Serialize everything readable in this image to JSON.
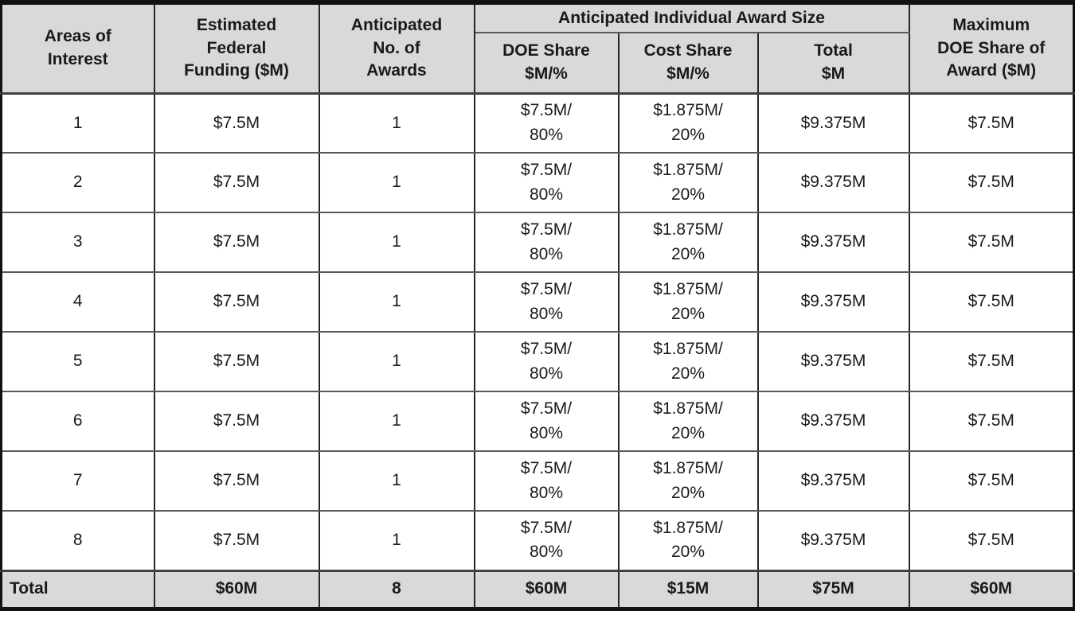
{
  "table": {
    "header": {
      "areas_of_interest": "Areas of\nInterest",
      "estimated_federal_funding": "Estimated\nFederal\nFunding ($M)",
      "anticipated_no_of_awards": "Anticipated\nNo. of\nAwards",
      "anticipated_individual_award_size": "Anticipated Individual Award Size",
      "doe_share": "DOE Share\n$M/%",
      "cost_share": "Cost Share\n$M/%",
      "total": "Total\n$M",
      "maximum_doe_share": "Maximum\nDOE Share of\nAward ($M)"
    },
    "rows": [
      {
        "area": "1",
        "federal_funding": "$7.5M",
        "awards": "1",
        "doe_share": "$7.5M/\n80%",
        "cost_share": "$1.875M/\n20%",
        "total": "$9.375M",
        "max_doe_share": "$7.5M"
      },
      {
        "area": "2",
        "federal_funding": "$7.5M",
        "awards": "1",
        "doe_share": "$7.5M/\n80%",
        "cost_share": "$1.875M/\n20%",
        "total": "$9.375M",
        "max_doe_share": "$7.5M"
      },
      {
        "area": "3",
        "federal_funding": "$7.5M",
        "awards": "1",
        "doe_share": "$7.5M/\n80%",
        "cost_share": "$1.875M/\n20%",
        "total": "$9.375M",
        "max_doe_share": "$7.5M"
      },
      {
        "area": "4",
        "federal_funding": "$7.5M",
        "awards": "1",
        "doe_share": "$7.5M/\n80%",
        "cost_share": "$1.875M/\n20%",
        "total": "$9.375M",
        "max_doe_share": "$7.5M"
      },
      {
        "area": "5",
        "federal_funding": "$7.5M",
        "awards": "1",
        "doe_share": "$7.5M/\n80%",
        "cost_share": "$1.875M/\n20%",
        "total": "$9.375M",
        "max_doe_share": "$7.5M"
      },
      {
        "area": "6",
        "federal_funding": "$7.5M",
        "awards": "1",
        "doe_share": "$7.5M/\n80%",
        "cost_share": "$1.875M/\n20%",
        "total": "$9.375M",
        "max_doe_share": "$7.5M"
      },
      {
        "area": "7",
        "federal_funding": "$7.5M",
        "awards": "1",
        "doe_share": "$7.5M/\n80%",
        "cost_share": "$1.875M/\n20%",
        "total": "$9.375M",
        "max_doe_share": "$7.5M"
      },
      {
        "area": "8",
        "federal_funding": "$7.5M",
        "awards": "1",
        "doe_share": "$7.5M/\n80%",
        "cost_share": "$1.875M/\n20%",
        "total": "$9.375M",
        "max_doe_share": "$7.5M"
      }
    ],
    "total_row": {
      "label": "Total",
      "federal_funding": "$60M",
      "awards": "8",
      "doe_share": "$60M",
      "cost_share": "$15M",
      "total": "$75M",
      "max_doe_share": "$60M"
    },
    "colors": {
      "header_background": "#d9d9d9",
      "total_row_background": "#d9d9d9",
      "outer_border": "#111111",
      "vertical_rule": "#262626",
      "horizontal_rule": "#595959",
      "text": "#1a1a1a"
    }
  }
}
